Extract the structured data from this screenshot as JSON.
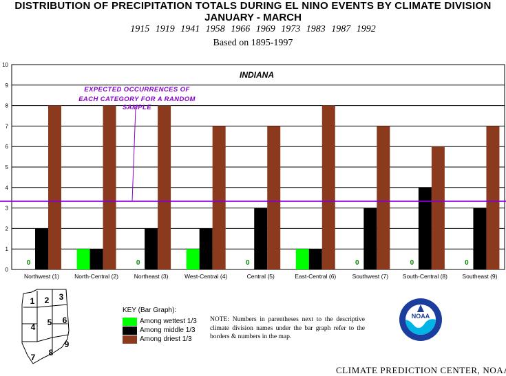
{
  "header": {
    "title": "DISTRIBUTION OF PRECIPITATION TOTALS DURING EL NINO EVENTS BY CLIMATE DIVISION",
    "subtitle": "JANUARY - MARCH",
    "years": "1915 1919 1941 1958 1966 1969 1973 1983 1987 1992",
    "basis": "Based on 1895-1997"
  },
  "chart_data": {
    "type": "bar",
    "title": "INDIANA",
    "categories": [
      "Northwest (1)",
      "North-Central (2)",
      "Northeast (3)",
      "West-Central (4)",
      "Central (5)",
      "East-Central (6)",
      "Southwest (7)",
      "South-Central (8)",
      "Southeast (9)"
    ],
    "series": [
      {
        "name": "Among wettest 1/3",
        "color": "#00ff00",
        "values": [
          0,
          1,
          0,
          1,
          0,
          1,
          0,
          0,
          0
        ]
      },
      {
        "name": "Among middle 1/3",
        "color": "#000000",
        "values": [
          2,
          1,
          2,
          2,
          3,
          1,
          3,
          4,
          3
        ]
      },
      {
        "name": "Among driest 1/3",
        "color": "#8b3a1e",
        "values": [
          8,
          8,
          8,
          7,
          7,
          8,
          7,
          6,
          7
        ]
      }
    ],
    "ylim": [
      0,
      10
    ],
    "yticks": [
      "0",
      "1",
      "2",
      "3",
      "4",
      "5",
      "6",
      "7",
      "8",
      "9",
      "10"
    ],
    "zero_label": "0",
    "grid": true,
    "reference_line": {
      "value": 3.33,
      "color": "#8800cc"
    },
    "annotation": [
      "EXPECTED OCCURRENCES OF",
      "EACH CATEGORY FOR A RANDOM",
      "SAMPLE"
    ]
  },
  "key": {
    "title": "KEY (Bar Graph):",
    "items": [
      {
        "label": "Among wettest 1/3",
        "color": "#00ff00"
      },
      {
        "label": "Among middle 1/3",
        "color": "#000000"
      },
      {
        "label": "Among driest 1/3",
        "color": "#8b3a1e"
      }
    ]
  },
  "note": "NOTE:  Numbers in parentheses next to the descriptive climate division names under the bar graph refer to the borders & numbers in the map.",
  "map": {
    "numbers": [
      "1",
      "2",
      "3",
      "4",
      "5",
      "6",
      "7",
      "8",
      "9"
    ]
  },
  "logo": {
    "text": "NOAA"
  },
  "credit": "CLIMATE PREDICTION CENTER, NOAA"
}
